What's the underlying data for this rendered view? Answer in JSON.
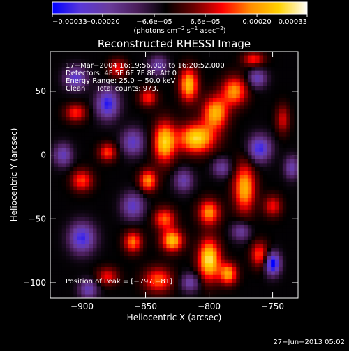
{
  "chart_data": {
    "type": "heatmap",
    "title": "Reconstructed RHESSI Image",
    "xlabel": "Heliocentric X (arcsec)",
    "ylabel": "Heliocentric Y (arcsec)",
    "xlim": [
      -925,
      -730
    ],
    "ylim": [
      -112,
      81
    ],
    "x_ticks": [
      {
        "value": -900,
        "label": "−900"
      },
      {
        "value": -850,
        "label": "−850"
      },
      {
        "value": -800,
        "label": "−800"
      },
      {
        "value": -750,
        "label": "−750"
      }
    ],
    "y_ticks": [
      {
        "value": 50,
        "label": "50"
      },
      {
        "value": 0,
        "label": "0"
      },
      {
        "value": -50,
        "label": "−50"
      },
      {
        "value": -100,
        "label": "−100"
      }
    ],
    "colorbar": {
      "min": -0.00033,
      "max": 0.00033,
      "tick_labels": [
        {
          "value": -0.00033,
          "label": "−0.00033"
        },
        {
          "value": -0.0002,
          "label": "−0.00020"
        },
        {
          "value": -6.6e-05,
          "label": "−6.6e−05"
        },
        {
          "value": 6.6e-05,
          "label": "6.6e−05"
        },
        {
          "value": 0.0002,
          "label": "0.00020"
        },
        {
          "value": 0.00033,
          "label": "0.00033"
        }
      ],
      "unit_parts": [
        "(photons cm",
        "−2",
        " s",
        "−1",
        " asec",
        "−2",
        ")"
      ],
      "colors": [
        "#0000ff",
        "#5a38d8",
        "#6a3c9c",
        "#4a1e5a",
        "#000000",
        "#6a0000",
        "#ff0000",
        "#ff8c00",
        "#ffd200",
        "#ffffff"
      ]
    },
    "annotations": [
      "17−Mar−2004 16:19:56.000 to 16:20:52.000",
      "Detectors: 4F 5F 6F 7F 8F, Att 0",
      "Energy Range: 25.0 − 50.0 keV",
      "Clean     Total counts: 973."
    ],
    "peak_label": "Position of Peak = [−797,−81]",
    "peak": {
      "x": -797,
      "y": -81,
      "value": 0.00033
    },
    "blobs": [
      {
        "x": -800,
        "y": -82,
        "v": 1.0,
        "sx": 6,
        "sy": 11
      },
      {
        "x": -785,
        "y": -93,
        "v": 0.75,
        "sx": 5,
        "sy": 6
      },
      {
        "x": -829,
        "y": -67,
        "v": 0.85,
        "sx": 6,
        "sy": 6
      },
      {
        "x": -800,
        "y": -45,
        "v": 0.7,
        "sx": 6,
        "sy": 7
      },
      {
        "x": -772,
        "y": -26,
        "v": 0.8,
        "sx": 6,
        "sy": 13
      },
      {
        "x": -810,
        "y": 13,
        "v": 0.95,
        "sx": 10,
        "sy": 8
      },
      {
        "x": -795,
        "y": 33,
        "v": 0.8,
        "sx": 7,
        "sy": 9
      },
      {
        "x": -816,
        "y": 55,
        "v": 0.85,
        "sx": 5,
        "sy": 9
      },
      {
        "x": -780,
        "y": 50,
        "v": 0.7,
        "sx": 7,
        "sy": 8
      },
      {
        "x": -835,
        "y": 10,
        "v": 0.9,
        "sx": 6,
        "sy": 11
      },
      {
        "x": -848,
        "y": -20,
        "v": 0.7,
        "sx": 5,
        "sy": 6
      },
      {
        "x": -835,
        "y": -50,
        "v": 0.6,
        "sx": 6,
        "sy": 6
      },
      {
        "x": -860,
        "y": -68,
        "v": 0.65,
        "sx": 5,
        "sy": 6
      },
      {
        "x": -880,
        "y": 2,
        "v": 0.55,
        "sx": 5,
        "sy": 5
      },
      {
        "x": -900,
        "y": -20,
        "v": 0.55,
        "sx": 6,
        "sy": 6
      },
      {
        "x": -905,
        "y": 33,
        "v": 0.5,
        "sx": 6,
        "sy": 5
      },
      {
        "x": -880,
        "y": -95,
        "v": 0.45,
        "sx": 6,
        "sy": 5
      },
      {
        "x": -840,
        "y": -98,
        "v": 0.6,
        "sx": 8,
        "sy": 7
      },
      {
        "x": -760,
        "y": -78,
        "v": 0.55,
        "sx": 5,
        "sy": 7
      },
      {
        "x": -750,
        "y": -40,
        "v": 0.45,
        "sx": 5,
        "sy": 6
      },
      {
        "x": -742,
        "y": 28,
        "v": 0.4,
        "sx": 4,
        "sy": 8
      },
      {
        "x": -848,
        "y": 45,
        "v": 0.5,
        "sx": 5,
        "sy": 5
      },
      {
        "x": -872,
        "y": 68,
        "v": 0.45,
        "sx": 5,
        "sy": 5
      },
      {
        "x": -765,
        "y": 75,
        "v": 0.5,
        "sx": 6,
        "sy": 4
      },
      {
        "x": -900,
        "y": -65,
        "v": -0.75,
        "sx": 7,
        "sy": 8
      },
      {
        "x": -880,
        "y": 40,
        "v": -0.8,
        "sx": 6,
        "sy": 8
      },
      {
        "x": -760,
        "y": 5,
        "v": -0.75,
        "sx": 6,
        "sy": 7
      },
      {
        "x": -750,
        "y": -85,
        "v": -1.0,
        "sx": 4,
        "sy": 6
      },
      {
        "x": -762,
        "y": 60,
        "v": -0.55,
        "sx": 5,
        "sy": 5
      },
      {
        "x": -860,
        "y": 10,
        "v": -0.6,
        "sx": 6,
        "sy": 7
      },
      {
        "x": -820,
        "y": -20,
        "v": -0.5,
        "sx": 5,
        "sy": 6
      },
      {
        "x": -915,
        "y": 0,
        "v": -0.55,
        "sx": 5,
        "sy": 6
      },
      {
        "x": -860,
        "y": -40,
        "v": -0.6,
        "sx": 6,
        "sy": 7
      },
      {
        "x": -815,
        "y": -100,
        "v": -0.5,
        "sx": 5,
        "sy": 5
      },
      {
        "x": -735,
        "y": -10,
        "v": -0.5,
        "sx": 4,
        "sy": 6
      },
      {
        "x": -905,
        "y": 60,
        "v": -0.65,
        "sx": 6,
        "sy": 6
      },
      {
        "x": -840,
        "y": 70,
        "v": -0.5,
        "sx": 5,
        "sy": 5
      },
      {
        "x": -790,
        "y": -10,
        "v": -0.45,
        "sx": 5,
        "sy": 5
      },
      {
        "x": -895,
        "y": -105,
        "v": -0.55,
        "sx": 5,
        "sy": 5
      },
      {
        "x": -775,
        "y": -60,
        "v": -0.45,
        "sx": 5,
        "sy": 5
      }
    ]
  },
  "footer": {
    "timestamp": "27−Jun−2013 05:02"
  }
}
